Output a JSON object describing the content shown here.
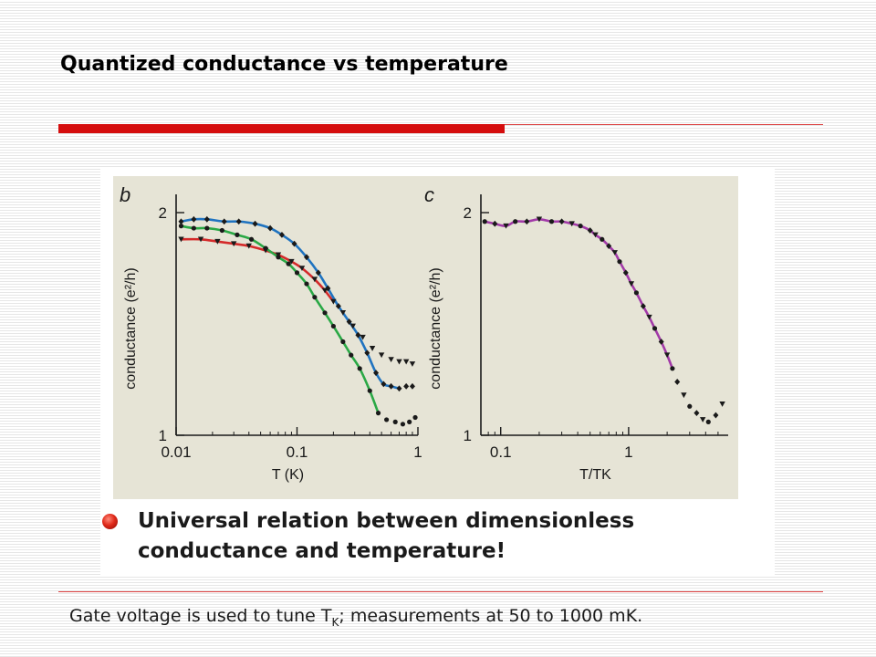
{
  "slide": {
    "title": "Quantized conductance vs temperature",
    "bullet": "Universal relation between dimensionless conductance and temperature!",
    "footer": {
      "before": "Gate voltage is used to tune T",
      "subscript": "K",
      "after": "; measurements at 50 to 1000 mK."
    }
  },
  "colors": {
    "accent_red": "#d50d0d",
    "plot_background": "#e6e4d6",
    "curve_red": "#d42a2a",
    "curve_blue": "#1f73c0",
    "curve_green": "#2aa845",
    "curve_purple": "#a23aa8"
  },
  "chart_data": [
    {
      "type": "scatter",
      "panel_letter": "b",
      "xlabel": "T (K)",
      "ylabel": "conductance (e²/h)",
      "xscale": "log",
      "xlim": [
        0.01,
        1
      ],
      "ylim": [
        1,
        2
      ],
      "xticks": [
        "0.01",
        "0.1",
        "1"
      ],
      "yticks": [
        "1",
        "2"
      ],
      "series": [
        {
          "marker": "triangle",
          "fit_color": "#d42a2a",
          "x": [
            0.011,
            0.016,
            0.022,
            0.03,
            0.04,
            0.055,
            0.07,
            0.09,
            0.11,
            0.14,
            0.17,
            0.2,
            0.24,
            0.29,
            0.35,
            0.42,
            0.5,
            0.6,
            0.7,
            0.8,
            0.9
          ],
          "y": [
            1.88,
            1.88,
            1.87,
            1.86,
            1.85,
            1.83,
            1.81,
            1.78,
            1.75,
            1.7,
            1.65,
            1.6,
            1.55,
            1.49,
            1.44,
            1.39,
            1.36,
            1.34,
            1.33,
            1.33,
            1.32
          ]
        },
        {
          "marker": "diamond",
          "fit_color": "#1f73c0",
          "x": [
            0.011,
            0.014,
            0.018,
            0.025,
            0.033,
            0.045,
            0.06,
            0.075,
            0.095,
            0.12,
            0.15,
            0.18,
            0.22,
            0.27,
            0.32,
            0.38,
            0.45,
            0.52,
            0.6,
            0.7,
            0.8,
            0.9
          ],
          "y": [
            1.96,
            1.97,
            1.97,
            1.96,
            1.96,
            1.95,
            1.93,
            1.9,
            1.86,
            1.8,
            1.73,
            1.66,
            1.58,
            1.51,
            1.45,
            1.37,
            1.28,
            1.23,
            1.22,
            1.21,
            1.22,
            1.22
          ]
        },
        {
          "marker": "circle",
          "fit_color": "#2aa845",
          "x": [
            0.011,
            0.014,
            0.018,
            0.024,
            0.032,
            0.042,
            0.055,
            0.07,
            0.085,
            0.1,
            0.12,
            0.14,
            0.17,
            0.2,
            0.24,
            0.28,
            0.33,
            0.4,
            0.47,
            0.55,
            0.65,
            0.75,
            0.85,
            0.95
          ],
          "y": [
            1.94,
            1.93,
            1.93,
            1.92,
            1.9,
            1.88,
            1.84,
            1.8,
            1.77,
            1.73,
            1.68,
            1.62,
            1.55,
            1.49,
            1.42,
            1.36,
            1.3,
            1.2,
            1.1,
            1.07,
            1.06,
            1.05,
            1.06,
            1.08
          ]
        }
      ]
    },
    {
      "type": "scatter",
      "panel_letter": "c",
      "xlabel": "T/TK",
      "ylabel": "conductance (e²/h)",
      "xscale": "log",
      "xlim": [
        0.07,
        6
      ],
      "ylim": [
        1,
        2
      ],
      "xticks": [
        "0.1",
        "1"
      ],
      "yticks": [
        "1",
        "2"
      ],
      "fit_color": "#a23aa8",
      "series": [
        {
          "marker": "mixed",
          "x": [
            0.075,
            0.09,
            0.11,
            0.13,
            0.16,
            0.2,
            0.25,
            0.3,
            0.36,
            0.42,
            0.5,
            0.55,
            0.62,
            0.7,
            0.78,
            0.85,
            0.95,
            1.05,
            1.15,
            1.3,
            1.45,
            1.6,
            1.8,
            2.0,
            2.2,
            2.4,
            2.7,
            3.0,
            3.4,
            3.8,
            4.2,
            4.8,
            5.4
          ],
          "y": [
            1.96,
            1.95,
            1.94,
            1.96,
            1.96,
            1.97,
            1.96,
            1.96,
            1.95,
            1.94,
            1.92,
            1.9,
            1.88,
            1.85,
            1.82,
            1.78,
            1.73,
            1.68,
            1.64,
            1.58,
            1.53,
            1.48,
            1.42,
            1.36,
            1.3,
            1.24,
            1.18,
            1.13,
            1.1,
            1.07,
            1.06,
            1.09,
            1.14
          ]
        }
      ]
    }
  ]
}
